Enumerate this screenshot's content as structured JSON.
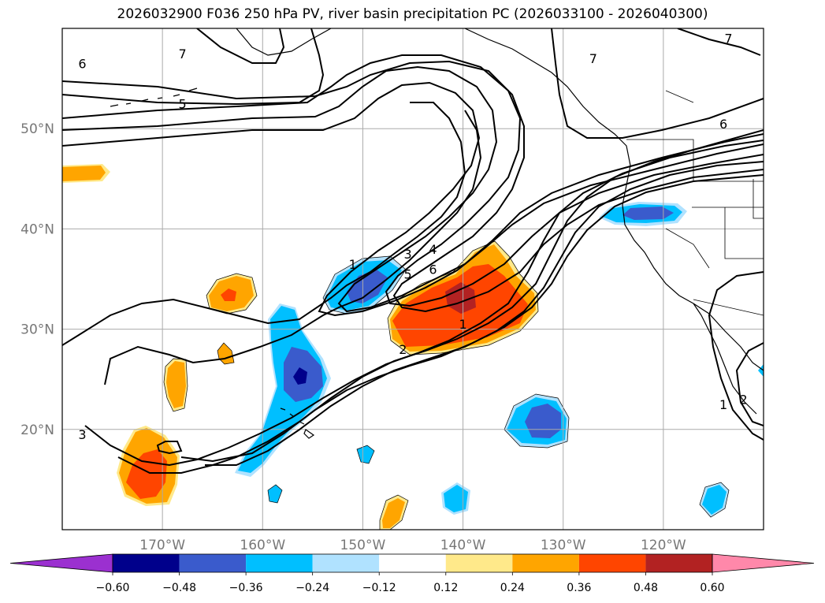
{
  "chart_data": {
    "type": "contour-map",
    "title": "2026032900 F036 250 hPa PV, river basin precipitation PC (2026033100 - 2026040300)",
    "xlim": [
      -180,
      -110
    ],
    "ylim": [
      10,
      60
    ],
    "lon_ticks": [
      {
        "value": -170,
        "label": "170°W"
      },
      {
        "value": -160,
        "label": "160°W"
      },
      {
        "value": -150,
        "label": "150°W"
      },
      {
        "value": -140,
        "label": "140°W"
      },
      {
        "value": -130,
        "label": "130°W"
      },
      {
        "value": -120,
        "label": "120°W"
      }
    ],
    "lat_ticks": [
      {
        "value": 20,
        "label": "20°N"
      },
      {
        "value": 30,
        "label": "30°N"
      },
      {
        "value": 40,
        "label": "40°N"
      },
      {
        "value": 50,
        "label": "50°N"
      }
    ],
    "grid": true,
    "colorbar": {
      "levels": [
        "−0.60",
        "−0.48",
        "−0.36",
        "−0.24",
        "−0.12",
        "0.12",
        "0.24",
        "0.36",
        "0.48",
        "0.60"
      ],
      "colors": [
        "#9b30d0",
        "#00008b",
        "#3a5bcc",
        "#00bfff",
        "#b0e2ff",
        "#ffffff",
        "#ffe98a",
        "#ffa500",
        "#ff4500",
        "#b22222",
        "#ff88aa"
      ],
      "extend": "both"
    },
    "contour_labels": [
      {
        "text": "6",
        "lon": -178,
        "lat": 56.5
      },
      {
        "text": "7",
        "lon": -168,
        "lat": 57.5
      },
      {
        "text": "5",
        "lon": -168,
        "lat": 52.5
      },
      {
        "text": "7",
        "lon": -127,
        "lat": 57
      },
      {
        "text": "7",
        "lon": -113.5,
        "lat": 59
      },
      {
        "text": "6",
        "lon": -114,
        "lat": 50.5
      },
      {
        "text": "1",
        "lon": -151,
        "lat": 36.5
      },
      {
        "text": "3",
        "lon": -145.5,
        "lat": 37.5
      },
      {
        "text": "4",
        "lon": -143,
        "lat": 38
      },
      {
        "text": "5",
        "lon": -145.5,
        "lat": 35.5
      },
      {
        "text": "6",
        "lon": -143,
        "lat": 36
      },
      {
        "text": "1",
        "lon": -140,
        "lat": 30.5
      },
      {
        "text": "2",
        "lon": -146,
        "lat": 28
      },
      {
        "text": "3",
        "lon": -178,
        "lat": 19.5
      },
      {
        "text": "1",
        "lon": -114,
        "lat": 22.5
      },
      {
        "text": "2",
        "lon": -112,
        "lat": 23
      }
    ],
    "shaded_regions": [
      {
        "name": "east-pacific-positive-max",
        "lon": -140,
        "lat": 33,
        "value": 0.48
      },
      {
        "name": "central-pacific-negative-max",
        "lon": -156,
        "lat": 25.5,
        "value": -0.6
      },
      {
        "name": "subtropical-positive",
        "lon": -172,
        "lat": 15.5,
        "value": 0.36
      },
      {
        "name": "california-negative",
        "lon": -121,
        "lat": 41,
        "value": -0.36
      },
      {
        "name": "hawaii-east-negative",
        "lon": -132,
        "lat": 21,
        "value": -0.36
      }
    ]
  }
}
